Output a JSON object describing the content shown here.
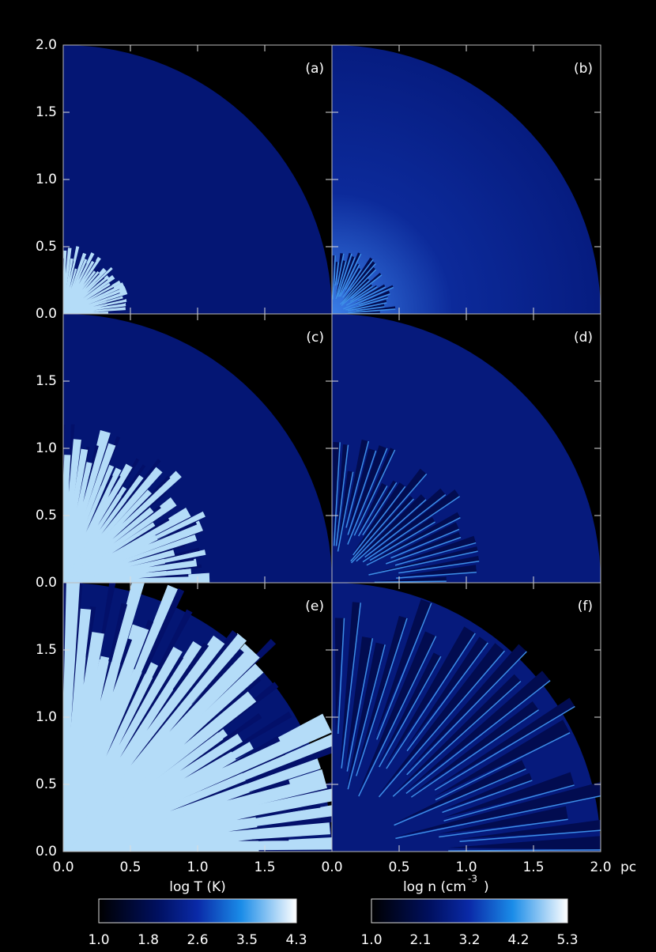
{
  "panels": [
    {
      "label": "(a)"
    },
    {
      "label": "(b)"
    },
    {
      "label": "(c)"
    },
    {
      "label": "(d)"
    },
    {
      "label": "(e)"
    },
    {
      "label": "(f)"
    }
  ],
  "y_ticks": [
    "0.0",
    "0.5",
    "1.0",
    "1.5",
    "2.0"
  ],
  "x_ticks_left": [
    "0.0",
    "0.5",
    "1.0",
    "1.5"
  ],
  "x_ticks_right": [
    "0.0",
    "0.5",
    "1.0",
    "1.5",
    "2.0"
  ],
  "x_unit": "pc",
  "colorbars": [
    {
      "label": "log T (K)",
      "ticks": [
        "1.0",
        "1.8",
        "2.6",
        "3.5",
        "4.3"
      ]
    },
    {
      "label": "log n (cm",
      "label_sup": "-3",
      "label_end": ")",
      "ticks": [
        "1.0",
        "2.1",
        "3.2",
        "4.2",
        "5.3"
      ]
    }
  ]
}
